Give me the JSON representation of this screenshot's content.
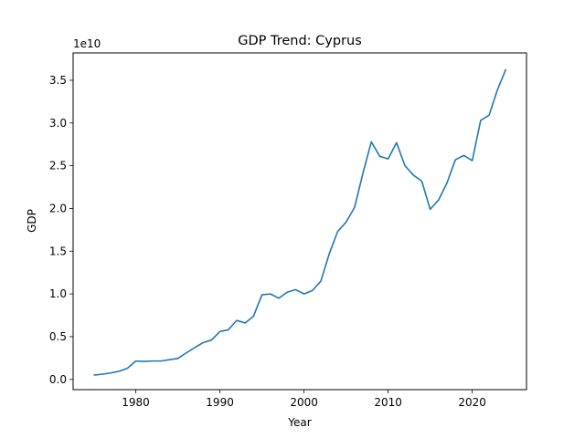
{
  "chart_data": {
    "type": "line",
    "title": "GDP Trend: Cyprus",
    "xlabel": "Year",
    "ylabel": "GDP",
    "y_offset_label": "1e10",
    "xlim": [
      1972.55,
      2026.45
    ],
    "ylim": [
      -0.12,
      3.82
    ],
    "y_scale_note": "values in units of 1e10",
    "x_ticks": [
      1980,
      1990,
      2000,
      2010,
      2020
    ],
    "x_tick_labels": [
      "1980",
      "1990",
      "2000",
      "2010",
      "2020"
    ],
    "y_ticks": [
      0.0,
      0.5,
      1.0,
      1.5,
      2.0,
      2.5,
      3.0,
      3.5
    ],
    "y_tick_labels": [
      "0.0",
      "0.5",
      "1.0",
      "1.5",
      "2.0",
      "2.5",
      "3.0",
      "3.5"
    ],
    "grid": false,
    "series": [
      {
        "color": "#1f77b4",
        "x": [
          1975,
          1976,
          1977,
          1978,
          1979,
          1980,
          1981,
          1982,
          1983,
          1984,
          1985,
          1986,
          1987,
          1988,
          1989,
          1990,
          1991,
          1992,
          1993,
          1994,
          1995,
          1996,
          1997,
          1998,
          1999,
          2000,
          2001,
          2002,
          2003,
          2004,
          2005,
          2006,
          2007,
          2008,
          2009,
          2010,
          2011,
          2012,
          2013,
          2014,
          2015,
          2016,
          2017,
          2018,
          2019,
          2020,
          2021,
          2022,
          2023,
          2024
        ],
        "y": [
          0.05,
          0.06,
          0.075,
          0.095,
          0.13,
          0.215,
          0.21,
          0.215,
          0.215,
          0.23,
          0.245,
          0.31,
          0.37,
          0.43,
          0.46,
          0.56,
          0.58,
          0.69,
          0.66,
          0.74,
          0.99,
          1.0,
          0.95,
          1.02,
          1.05,
          1.0,
          1.04,
          1.15,
          1.47,
          1.73,
          1.84,
          2.01,
          2.41,
          2.78,
          2.61,
          2.58,
          2.77,
          2.5,
          2.39,
          2.32,
          1.99,
          2.1,
          2.3,
          2.57,
          2.62,
          2.56,
          3.03,
          3.09,
          3.39,
          3.63
        ]
      }
    ]
  }
}
